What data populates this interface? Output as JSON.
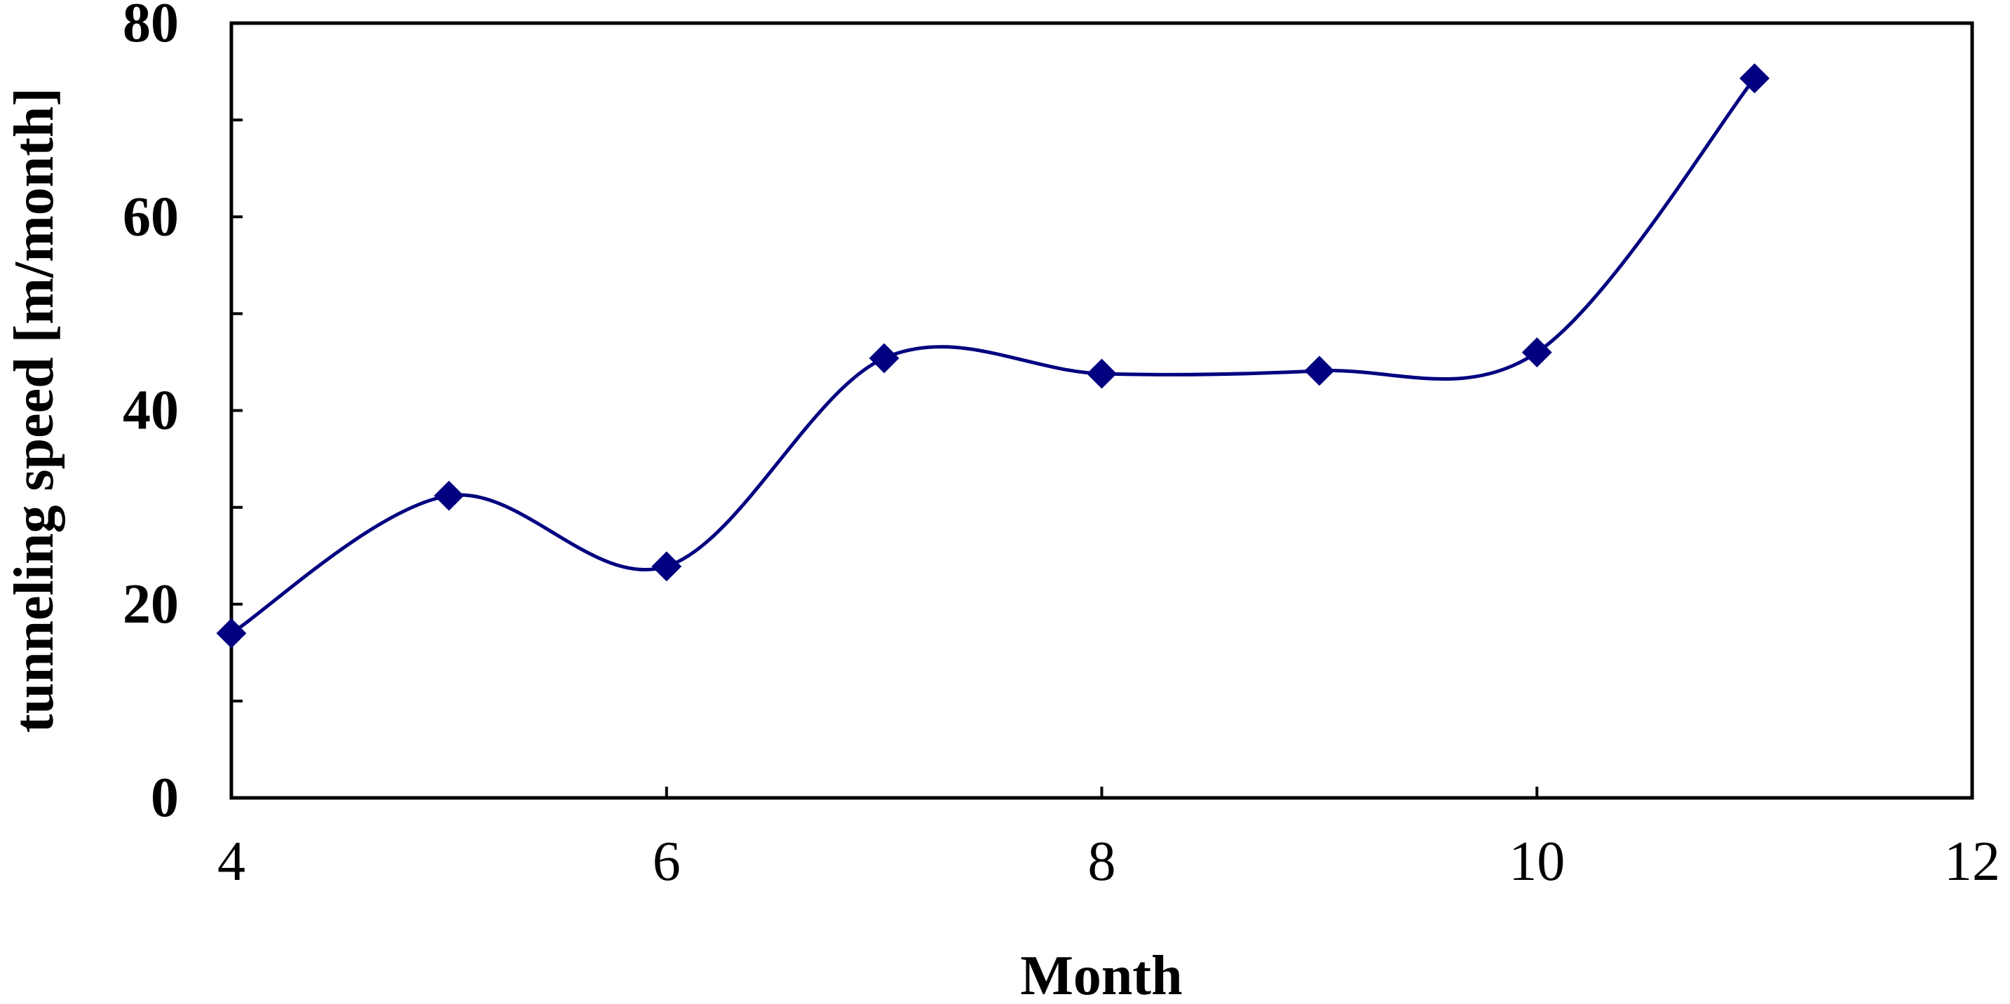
{
  "chart_data": {
    "type": "line",
    "title": "",
    "xlabel": "Month",
    "ylabel": "tunneling speed [m/month]",
    "xlim": [
      4,
      12
    ],
    "ylim": [
      0,
      80
    ],
    "x_ticks": [
      "4",
      "6",
      "8",
      "10",
      "12"
    ],
    "y_ticks": [
      "0",
      "20",
      "40",
      "60",
      "80"
    ],
    "y_minor_step": 10,
    "grid": false,
    "legend": "none",
    "smoothed": true,
    "series": [
      {
        "x": [
          4,
          5,
          6,
          7,
          8,
          9,
          10,
          11
        ],
        "y": [
          17,
          31.2,
          23.9,
          45.4,
          43.8,
          44.1,
          46,
          74.3
        ],
        "color": "#000080",
        "marker": "diamond"
      }
    ]
  }
}
